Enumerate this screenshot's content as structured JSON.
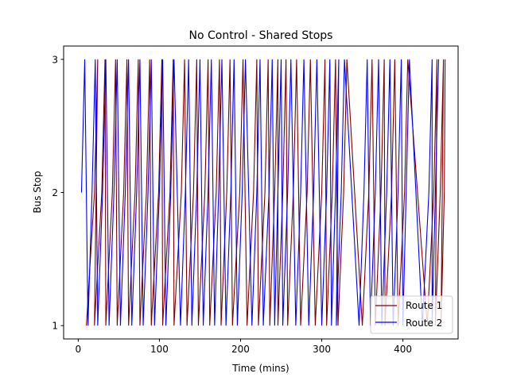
{
  "chart_data": {
    "type": "line",
    "title": "No Control - Shared Stops",
    "xlabel": "Time (mins)",
    "ylabel": "Bus Stop",
    "xlim": [
      -18,
      468
    ],
    "ylim": [
      0.9,
      3.1
    ],
    "xticks": [
      0,
      100,
      200,
      300,
      400
    ],
    "xtick_labels": [
      "0",
      "100",
      "200",
      "300",
      "400"
    ],
    "yticks": [
      1,
      2,
      3
    ],
    "ytick_labels": [
      "1",
      "2",
      "3"
    ],
    "grid": false,
    "legend": {
      "placement": "lower-right"
    },
    "colors": {
      "route1": "#800000",
      "route2": "#0000ff"
    },
    "series": [
      {
        "name": "Route 1",
        "color": "#800000",
        "cycles": [
          {
            "t1": 10,
            "t2": 20,
            "t3": 24
          },
          {
            "t1": 20,
            "t2": 29,
            "t3": 33
          },
          {
            "t1": 34,
            "t2": 42,
            "t3": 46
          },
          {
            "t1": 48,
            "t2": 56,
            "t3": 60
          },
          {
            "t1": 62,
            "t2": 70,
            "t3": 74
          },
          {
            "t1": 76,
            "t2": 84,
            "t3": 88
          },
          {
            "t1": 90,
            "t2": 99,
            "t3": 103
          },
          {
            "t1": 104,
            "t2": 113,
            "t3": 117
          },
          {
            "t1": 118,
            "t2": 127,
            "t3": 131
          },
          {
            "t1": 134,
            "t2": 142,
            "t3": 146
          },
          {
            "t1": 148,
            "t2": 156,
            "t3": 160
          },
          {
            "t1": 162,
            "t2": 170,
            "t3": 174
          },
          {
            "t1": 176,
            "t2": 183,
            "t3": 187
          },
          {
            "t1": 190,
            "t2": 199,
            "t3": 203
          },
          {
            "t1": 208,
            "t2": 216,
            "t3": 220
          },
          {
            "t1": 222,
            "t2": 230,
            "t3": 234
          },
          {
            "t1": 236,
            "t2": 242,
            "t3": 246
          },
          {
            "t1": 246,
            "t2": 252,
            "t3": 256
          },
          {
            "t1": 258,
            "t2": 265,
            "t3": 269
          },
          {
            "t1": 274,
            "t2": 282,
            "t3": 286
          },
          {
            "t1": 292,
            "t2": 300,
            "t3": 304
          },
          {
            "t1": 306,
            "t2": 313,
            "t3": 317
          },
          {
            "t1": 320,
            "t2": 327,
            "t3": 331
          },
          {
            "t1": 350,
            "t2": 358,
            "t3": 362
          },
          {
            "t1": 366,
            "t2": 373,
            "t3": 377
          },
          {
            "t1": 378,
            "t2": 386,
            "t3": 390
          },
          {
            "t1": 394,
            "t2": 402,
            "t3": 406
          },
          {
            "t1": 430,
            "t2": 438,
            "t3": 442
          },
          {
            "t1": 440,
            "t2": 446,
            "t3": 450
          },
          {
            "t1": 447,
            "t2": 451,
            "t3": 452
          }
        ]
      },
      {
        "name": "Route 2",
        "color": "#0000ff",
        "cycles": [
          {
            "t1": null,
            "t2": 4,
            "t3": 8
          },
          {
            "t1": 12,
            "t2": 17,
            "t3": 21
          },
          {
            "t1": 24,
            "t2": 30,
            "t3": 34
          },
          {
            "t1": 38,
            "t2": 44,
            "t3": 48
          },
          {
            "t1": 52,
            "t2": 58,
            "t3": 62
          },
          {
            "t1": 66,
            "t2": 72,
            "t3": 76
          },
          {
            "t1": 80,
            "t2": 86,
            "t3": 90
          },
          {
            "t1": 94,
            "t2": 100,
            "t3": 104
          },
          {
            "t1": 108,
            "t2": 114,
            "t3": 118
          },
          {
            "t1": 126,
            "t2": 132,
            "t3": 136
          },
          {
            "t1": 140,
            "t2": 146,
            "t3": 150
          },
          {
            "t1": 154,
            "t2": 160,
            "t3": 164
          },
          {
            "t1": 168,
            "t2": 173,
            "t3": 177
          },
          {
            "t1": 182,
            "t2": 188,
            "t3": 192
          },
          {
            "t1": 196,
            "t2": 202,
            "t3": 206
          },
          {
            "t1": 214,
            "t2": 220,
            "t3": 224
          },
          {
            "t1": 228,
            "t2": 235,
            "t3": 239
          },
          {
            "t1": 242,
            "t2": 246,
            "t3": 250
          },
          {
            "t1": 252,
            "t2": 258,
            "t3": 262
          },
          {
            "t1": 268,
            "t2": 274,
            "t3": 278
          },
          {
            "t1": 284,
            "t2": 290,
            "t3": 294
          },
          {
            "t1": 300,
            "t2": 306,
            "t3": 310
          },
          {
            "t1": 312,
            "t2": 317,
            "t3": 321
          },
          {
            "t1": 318,
            "t2": 324,
            "t3": 328
          },
          {
            "t1": 346,
            "t2": 352,
            "t3": 356
          },
          {
            "t1": 360,
            "t2": 366,
            "t3": 370
          },
          {
            "t1": 374,
            "t2": 380,
            "t3": 384
          },
          {
            "t1": 388,
            "t2": 394,
            "t3": 398
          },
          {
            "t1": 400,
            "t2": 404,
            "t3": 408
          },
          {
            "t1": 424,
            "t2": 432,
            "t3": 436
          },
          {
            "t1": 436,
            "t2": 440,
            "t3": 444
          }
        ]
      }
    ]
  }
}
